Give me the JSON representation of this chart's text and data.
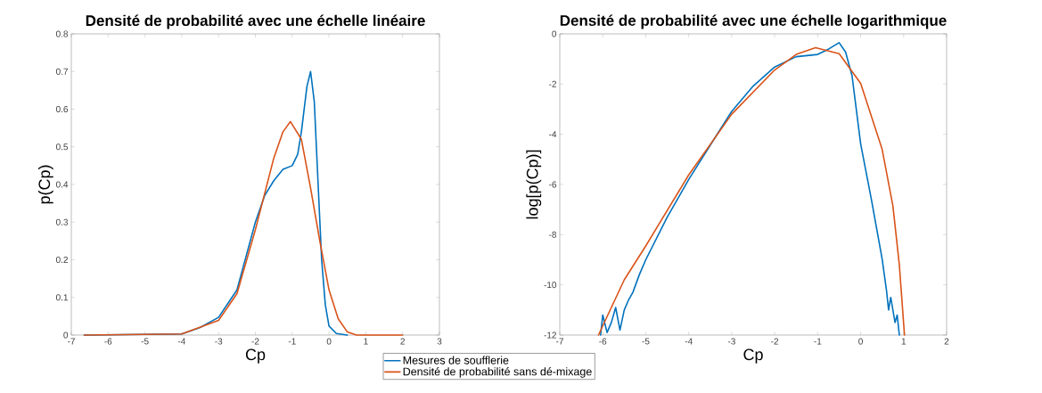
{
  "chart_data": [
    {
      "type": "line",
      "title": "Densité de probabilité avec une échelle linéaire",
      "xlabel": "Cp",
      "ylabel": "p(Cp)",
      "xlim": [
        -7,
        3
      ],
      "ylim": [
        0,
        0.8
      ],
      "xticks": [
        -7,
        -6,
        -5,
        -4,
        -3,
        -2,
        -1,
        0,
        1,
        2,
        3
      ],
      "yticks": [
        0,
        0.1,
        0.2,
        0.3,
        0.4,
        0.5,
        0.6,
        0.7,
        0.8
      ],
      "grid": false,
      "legend": "bottom",
      "line_style": "solid",
      "marker": "none",
      "series": [
        {
          "name": "Mesures de soufflerie",
          "color": "#0072bd",
          "x": [
            -6.65,
            -4,
            -3.5,
            -3,
            -2.5,
            -2,
            -1.75,
            -1.5,
            -1.25,
            -1,
            -0.85,
            -0.75,
            -0.6,
            -0.5,
            -0.4,
            -0.3,
            -0.2,
            -0.1,
            0,
            0.2,
            0.5
          ],
          "values": [
            0,
            0.003,
            0.02,
            0.047,
            0.12,
            0.3,
            0.37,
            0.41,
            0.44,
            0.45,
            0.48,
            0.54,
            0.66,
            0.7,
            0.62,
            0.41,
            0.2,
            0.08,
            0.024,
            0.004,
            0
          ]
        },
        {
          "name": "Densité de probabilité sans dé-mixage",
          "color": "#d95319",
          "x": [
            -6.65,
            -4,
            -3,
            -2.5,
            -2,
            -1.5,
            -1.25,
            -1.05,
            -0.75,
            -0.5,
            -0.25,
            0,
            0.25,
            0.5,
            0.75,
            2
          ],
          "values": [
            0,
            0.003,
            0.039,
            0.11,
            0.28,
            0.47,
            0.54,
            0.567,
            0.52,
            0.39,
            0.25,
            0.12,
            0.043,
            0.008,
            0,
            0
          ]
        }
      ]
    },
    {
      "type": "line",
      "title": "Densité de probabilité avec une échelle logarithmique",
      "xlabel": "Cp",
      "ylabel": "log[p(Cp)]",
      "xlim": [
        -7,
        2
      ],
      "ylim": [
        -12,
        0
      ],
      "xticks": [
        -7,
        -6,
        -5,
        -4,
        -3,
        -2,
        -1,
        0,
        1,
        2
      ],
      "yticks": [
        -12,
        -10,
        -8,
        -6,
        -4,
        -2,
        0
      ],
      "grid": false,
      "line_style": "solid",
      "marker": "none",
      "series": [
        {
          "color": "#0072bd",
          "x": [
            -6.05,
            -6.0,
            -5.9,
            -5.8,
            -5.7,
            -5.6,
            -5.5,
            -5.4,
            -5.3,
            -5.15,
            -5,
            -4.5,
            -4,
            -3.5,
            -3,
            -2.5,
            -2,
            -1.5,
            -1,
            -0.75,
            -0.5,
            -0.35,
            -0.2,
            0,
            0.25,
            0.5,
            0.6,
            0.65,
            0.7,
            0.8,
            0.85,
            0.9
          ],
          "values": [
            -12,
            -11.2,
            -11.9,
            -11.5,
            -10.9,
            -11.8,
            -11,
            -10.6,
            -10.3,
            -9.6,
            -9,
            -7.3,
            -5.8,
            -4.44,
            -3.09,
            -2.08,
            -1.32,
            -0.91,
            -0.82,
            -0.61,
            -0.35,
            -0.73,
            -1.67,
            -4.38,
            -6.6,
            -8.97,
            -10.2,
            -11,
            -10.5,
            -11.5,
            -11.2,
            -12
          ]
        },
        {
          "color": "#d95319",
          "x": [
            -6.1,
            -5.5,
            -5,
            -4,
            -3,
            -2,
            -1.5,
            -1.05,
            -0.5,
            0,
            0.5,
            0.75,
            0.9,
            1.02
          ],
          "values": [
            -12,
            -9.8,
            -8.45,
            -5.62,
            -3.2,
            -1.44,
            -0.82,
            -0.55,
            -0.79,
            -1.97,
            -4.6,
            -6.85,
            -9.2,
            -12
          ]
        }
      ]
    }
  ]
}
